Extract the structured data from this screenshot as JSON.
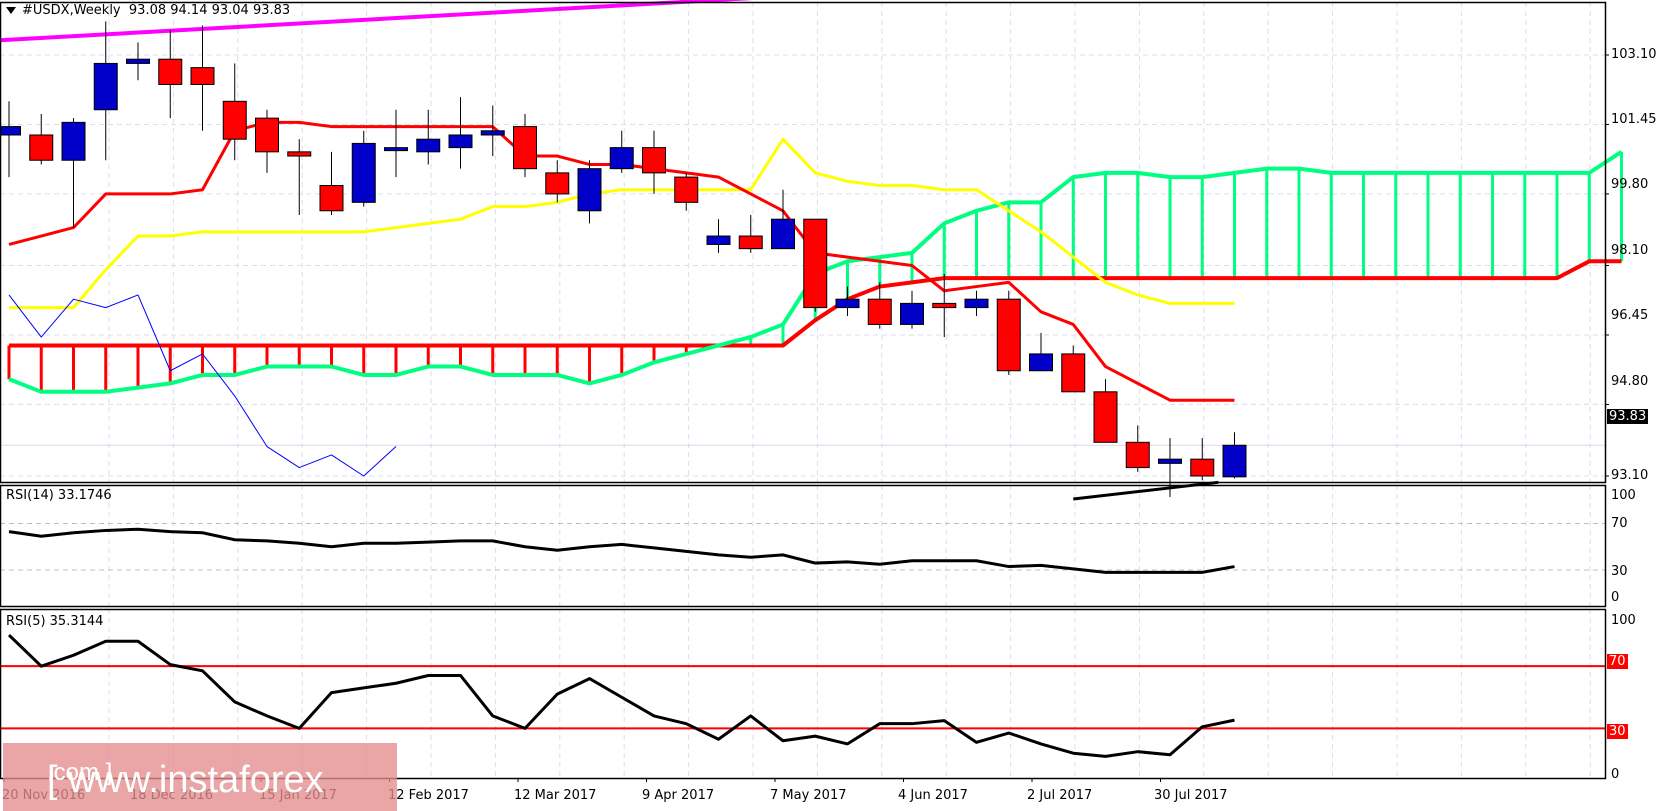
{
  "header": {
    "symbol": "#USDX,Weekly",
    "ohlc": "93.08 94.14 93.04 93.83"
  },
  "price_axis": {
    "ticks": [
      "103.10",
      "101.45",
      "99.80",
      "98.10",
      "96.45",
      "94.80",
      "93.10"
    ],
    "current_price": "93.83"
  },
  "rsi14": {
    "label": "RSI(14) 33.1746",
    "ticks": [
      "100",
      "70",
      "30",
      "0"
    ]
  },
  "rsi5": {
    "label": "RSI(5) 35.3144",
    "ticks": [
      "100",
      "0"
    ],
    "level_tags": [
      "70",
      "30"
    ]
  },
  "date_axis": {
    "labels": [
      "20 Nov 2016",
      "18 Dec 2016",
      "15 Jan 2017",
      "12 Feb 2017",
      "12 Mar 2017",
      "9 Apr 2017",
      "7 May 2017",
      "4 Jun 2017",
      "2 Jul 2017",
      "30 Jul 2017"
    ]
  },
  "watermark": {
    "main": "[ www.instaforex",
    "suffix": ".com ]"
  },
  "colors": {
    "bull_candle": "#0000c8",
    "bear_candle": "#ff0000",
    "kijun": "#ff0000",
    "tenkan_yellow": "#ffff00",
    "senkou_green": "#00ff80",
    "senkou_red": "#ff0000",
    "chikou_blue": "#0000ff",
    "trendline_magenta": "#ff00ff",
    "trendline_black": "#000000",
    "rsi_line": "#000000",
    "rsi_levels": "#ff0000",
    "grid": "#dcdcf0"
  },
  "chart_data": [
    {
      "type": "candlestick",
      "title": "#USDX, Weekly",
      "ohlc_last": {
        "open": 93.08,
        "high": 94.14,
        "low": 93.04,
        "close": 93.83
      },
      "x_ticks": [
        "20 Nov 2016",
        "18 Dec 2016",
        "15 Jan 2017",
        "12 Feb 2017",
        "12 Mar 2017",
        "9 Apr 2017",
        "7 May 2017",
        "4 Jun 2017",
        "2 Jul 2017",
        "30 Jul 2017"
      ],
      "y_ticks": [
        103.1,
        101.45,
        99.8,
        98.1,
        96.45,
        94.8,
        93.1
      ],
      "ylim": [
        92.6,
        104.3
      ],
      "candles": [
        {
          "o": 101.2,
          "h": 102.0,
          "l": 100.2,
          "c": 101.4
        },
        {
          "o": 101.2,
          "h": 101.7,
          "l": 100.5,
          "c": 100.6
        },
        {
          "o": 100.6,
          "h": 101.6,
          "l": 99.0,
          "c": 101.5
        },
        {
          "o": 101.8,
          "h": 103.9,
          "l": 100.6,
          "c": 102.9
        },
        {
          "o": 102.9,
          "h": 103.4,
          "l": 102.5,
          "c": 103.0
        },
        {
          "o": 103.0,
          "h": 103.7,
          "l": 101.6,
          "c": 102.4
        },
        {
          "o": 102.8,
          "h": 103.8,
          "l": 101.3,
          "c": 102.4
        },
        {
          "o": 102.0,
          "h": 102.9,
          "l": 100.6,
          "c": 101.1
        },
        {
          "o": 101.6,
          "h": 101.8,
          "l": 100.3,
          "c": 100.8
        },
        {
          "o": 100.8,
          "h": 101.1,
          "l": 99.3,
          "c": 100.7
        },
        {
          "o": 100.0,
          "h": 100.8,
          "l": 99.3,
          "c": 99.4
        },
        {
          "o": 99.6,
          "h": 101.3,
          "l": 99.5,
          "c": 101.0
        },
        {
          "o": 100.9,
          "h": 101.8,
          "l": 100.2,
          "c": 100.9
        },
        {
          "o": 100.8,
          "h": 101.8,
          "l": 100.5,
          "c": 101.1
        },
        {
          "o": 100.9,
          "h": 102.1,
          "l": 100.4,
          "c": 101.2
        },
        {
          "o": 101.2,
          "h": 101.9,
          "l": 100.7,
          "c": 101.3
        },
        {
          "o": 101.4,
          "h": 101.7,
          "l": 100.2,
          "c": 100.4
        },
        {
          "o": 100.3,
          "h": 100.6,
          "l": 99.6,
          "c": 99.8
        },
        {
          "o": 99.4,
          "h": 100.6,
          "l": 99.1,
          "c": 100.4
        },
        {
          "o": 100.4,
          "h": 101.3,
          "l": 100.3,
          "c": 100.9
        },
        {
          "o": 100.9,
          "h": 101.3,
          "l": 99.8,
          "c": 100.3
        },
        {
          "o": 100.2,
          "h": 100.3,
          "l": 99.4,
          "c": 99.6
        },
        {
          "o": 98.6,
          "h": 99.2,
          "l": 98.4,
          "c": 98.8
        },
        {
          "o": 98.8,
          "h": 99.3,
          "l": 98.4,
          "c": 98.5
        },
        {
          "o": 98.5,
          "h": 99.9,
          "l": 98.5,
          "c": 99.2
        },
        {
          "o": 99.2,
          "h": 99.2,
          "l": 97.0,
          "c": 97.1
        },
        {
          "o": 97.1,
          "h": 97.6,
          "l": 96.9,
          "c": 97.3
        },
        {
          "o": 97.3,
          "h": 97.7,
          "l": 96.6,
          "c": 96.7
        },
        {
          "o": 96.7,
          "h": 97.5,
          "l": 96.6,
          "c": 97.2
        },
        {
          "o": 97.2,
          "h": 97.9,
          "l": 96.4,
          "c": 97.1
        },
        {
          "o": 97.1,
          "h": 97.5,
          "l": 96.9,
          "c": 97.3
        },
        {
          "o": 97.3,
          "h": 97.5,
          "l": 95.5,
          "c": 95.6
        },
        {
          "o": 95.6,
          "h": 96.5,
          "l": 95.6,
          "c": 96.0
        },
        {
          "o": 96.0,
          "h": 96.2,
          "l": 95.1,
          "c": 95.1
        },
        {
          "o": 95.1,
          "h": 95.4,
          "l": 93.9,
          "c": 93.9
        },
        {
          "o": 93.9,
          "h": 94.3,
          "l": 93.2,
          "c": 93.3
        },
        {
          "o": 93.4,
          "h": 94.0,
          "l": 92.6,
          "c": 93.5
        },
        {
          "o": 93.5,
          "h": 94.0,
          "l": 93.0,
          "c": 93.1
        },
        {
          "o": 93.08,
          "h": 94.14,
          "l": 93.04,
          "c": 93.83
        }
      ],
      "series": [
        {
          "name": "Kijun-sen (red)",
          "values": [
            98.6,
            98.8,
            99.0,
            99.8,
            99.8,
            99.8,
            99.9,
            101.3,
            101.5,
            101.5,
            101.4,
            101.4,
            101.4,
            101.4,
            101.4,
            101.4,
            100.7,
            100.7,
            100.5,
            100.5,
            100.4,
            100.3,
            100.2,
            99.8,
            99.4,
            98.4,
            98.3,
            98.2,
            98.1,
            97.5,
            97.6,
            97.7,
            97.0,
            96.7,
            95.7,
            95.3,
            94.9,
            94.9,
            94.9
          ]
        },
        {
          "name": "Tenkan-sen (yellow)",
          "values": [
            97.1,
            97.1,
            97.1,
            98.0,
            98.8,
            98.8,
            98.9,
            98.9,
            98.9,
            98.9,
            98.9,
            98.9,
            99.0,
            99.1,
            99.2,
            99.5,
            99.5,
            99.6,
            99.8,
            99.9,
            99.9,
            99.9,
            99.9,
            99.9,
            101.1,
            100.3,
            100.1,
            100.0,
            100.0,
            99.9,
            99.9,
            99.4,
            98.9,
            98.3,
            97.7,
            97.4,
            97.2,
            97.2,
            97.2
          ]
        },
        {
          "name": "Senkou Span A (green)",
          "values": [
            95.4,
            95.1,
            95.1,
            95.1,
            95.2,
            95.3,
            95.5,
            95.5,
            95.7,
            95.7,
            95.7,
            95.5,
            95.5,
            95.7,
            95.7,
            95.5,
            95.5,
            95.5,
            95.3,
            95.5,
            95.8,
            96.0,
            96.2,
            96.4,
            96.7,
            97.9,
            98.2,
            98.3,
            98.4,
            99.1,
            99.4,
            99.6,
            99.6,
            100.2,
            100.3,
            100.3,
            100.2,
            100.2,
            100.3,
            100.4,
            100.4,
            100.3,
            100.3,
            100.3,
            100.3,
            100.3,
            100.3,
            100.3,
            100.3,
            100.3,
            100.8
          ]
        },
        {
          "name": "Senkou Span B (red)",
          "values": [
            96.2,
            96.2,
            96.2,
            96.2,
            96.2,
            96.2,
            96.2,
            96.2,
            96.2,
            96.2,
            96.2,
            96.2,
            96.2,
            96.2,
            96.2,
            96.2,
            96.2,
            96.2,
            96.2,
            96.2,
            96.2,
            96.2,
            96.2,
            96.2,
            96.2,
            96.8,
            97.3,
            97.6,
            97.7,
            97.8,
            97.8,
            97.8,
            97.8,
            97.8,
            97.8,
            97.8,
            97.8,
            97.8,
            97.8,
            97.8,
            97.8,
            97.8,
            97.8,
            97.8,
            97.8,
            97.8,
            97.8,
            97.8,
            97.8,
            98.2,
            98.2
          ]
        },
        {
          "name": "Chikou Span (blue)",
          "values": [
            97.4,
            96.4,
            97.3,
            97.1,
            97.4,
            95.6,
            96.0,
            95.0,
            93.8,
            93.3,
            93.6,
            93.1,
            93.8
          ]
        },
        {
          "name": "Resistance trendline (magenta)",
          "points": [
            [
              0,
              103.45
            ],
            [
              23,
              104.45
            ]
          ]
        },
        {
          "name": "Support trendline (black)",
          "points": [
            [
              33,
              92.6
            ],
            [
              37.5,
              92.95
            ]
          ]
        }
      ]
    },
    {
      "type": "line",
      "title": "RSI(14) 33.1746",
      "ylim": [
        0,
        100
      ],
      "y_ticks": [
        100,
        70,
        30,
        0
      ],
      "levels": [
        70,
        30
      ],
      "values": [
        63,
        59,
        62,
        64,
        65,
        63,
        62,
        56,
        55,
        53,
        50,
        53,
        53,
        54,
        55,
        55,
        50,
        47,
        50,
        52,
        49,
        46,
        43,
        41,
        43,
        36,
        37,
        35,
        38,
        38,
        38,
        33,
        34,
        31,
        28,
        28,
        28,
        28,
        33
      ]
    },
    {
      "type": "line",
      "title": "RSI(5) 35.3144",
      "ylim": [
        0,
        100
      ],
      "y_ticks": [
        100,
        0
      ],
      "levels": [
        70,
        30
      ],
      "values": [
        90,
        70,
        77,
        86,
        86,
        71,
        67,
        47,
        38,
        30,
        53,
        56,
        59,
        64,
        64,
        38,
        30,
        52,
        62,
        50,
        38,
        33,
        23,
        38,
        22,
        25,
        20,
        33,
        33,
        35,
        21,
        27,
        20,
        14,
        12,
        15,
        13,
        31,
        35.3
      ]
    }
  ]
}
